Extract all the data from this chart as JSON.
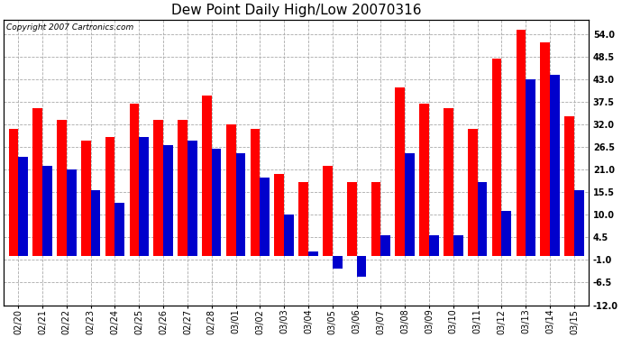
{
  "title": "Dew Point Daily High/Low 20070316",
  "copyright": "Copyright 2007 Cartronics.com",
  "dates": [
    "02/20",
    "02/21",
    "02/22",
    "02/23",
    "02/24",
    "02/25",
    "02/26",
    "02/27",
    "02/28",
    "03/01",
    "03/02",
    "03/03",
    "03/04",
    "03/05",
    "03/06",
    "03/07",
    "03/08",
    "03/09",
    "03/10",
    "03/11",
    "03/12",
    "03/13",
    "03/14",
    "03/15"
  ],
  "highs": [
    31,
    36,
    33,
    28,
    29,
    37,
    33,
    33,
    39,
    32,
    31,
    20,
    18,
    22,
    18,
    18,
    41,
    37,
    36,
    31,
    48,
    55,
    52,
    34
  ],
  "lows": [
    24,
    22,
    21,
    16,
    13,
    29,
    27,
    28,
    26,
    25,
    19,
    10,
    1,
    -3,
    -5,
    5,
    25,
    5,
    5,
    18,
    11,
    43,
    44,
    16
  ],
  "high_color": "#ff0000",
  "low_color": "#0000cc",
  "background_color": "#ffffff",
  "plot_bg_color": "#ffffff",
  "grid_color": "#aaaaaa",
  "ylim_min": -12.0,
  "ylim_max": 57.5,
  "yticks": [
    -12.0,
    -6.5,
    -1.0,
    4.5,
    10.0,
    15.5,
    21.0,
    26.5,
    32.0,
    37.5,
    43.0,
    48.5,
    54.0
  ],
  "bar_width": 0.4,
  "title_fontsize": 11,
  "tick_fontsize": 7,
  "copyright_fontsize": 6.5,
  "figwidth": 6.9,
  "figheight": 3.75,
  "dpi": 100
}
